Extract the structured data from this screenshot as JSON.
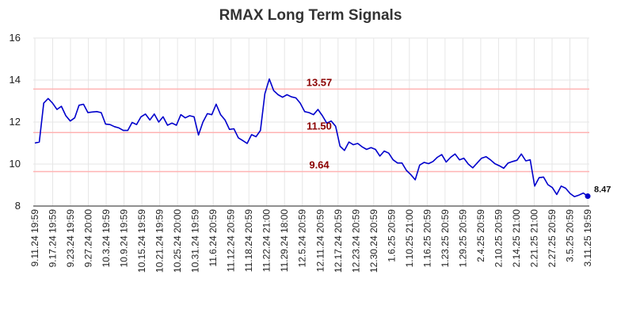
{
  "chart_data": {
    "type": "line",
    "title": "RMAX Long Term Signals",
    "xlabel": "",
    "ylabel": "",
    "ylim": [
      8,
      16
    ],
    "yticks": [
      8,
      10,
      12,
      14,
      16
    ],
    "grid": true,
    "colors": {
      "line": "#0000cc",
      "reference": "#ffb3b3",
      "reference_label": "#8b0000",
      "grid": "#e6e6e6",
      "last_point": "#0000cc"
    },
    "x_tick_labels": [
      "9.11.24 19:59",
      "9.17.24 19:59",
      "9.23.24 19:59",
      "9.27.24 20:00",
      "10.3.24 19:59",
      "10.9.24 19:59",
      "10.15.24 19:59",
      "10.21.24 19:59",
      "10.25.24 20:00",
      "10.31.24 19:59",
      "11.6.24 20:59",
      "11.12.24 20:59",
      "11.18.24 20:59",
      "11.22.24 21:00",
      "11.29.24 18:00",
      "12.5.24 20:59",
      "12.11.24 20:59",
      "12.17.24 20:59",
      "12.23.24 20:59",
      "12.30.24 20:59",
      "1.6.25 20:59",
      "1.10.25 21:00",
      "1.16.25 20:59",
      "1.23.25 20:59",
      "1.29.25 20:59",
      "2.4.25 20:59",
      "2.10.25 20:59",
      "2.14.25 21:00",
      "2.21.25 21:00",
      "2.27.25 20:59",
      "3.5.25 20:59",
      "3.11.25 19:59"
    ],
    "reference_lines": [
      {
        "value": 13.57,
        "label": "13.57"
      },
      {
        "value": 11.5,
        "label": "11.50"
      },
      {
        "value": 9.64,
        "label": "9.64"
      }
    ],
    "last_value_label": "8.47",
    "series": [
      {
        "values": [
          11.0,
          11.05,
          12.9,
          13.12,
          12.9,
          12.6,
          12.75,
          12.3,
          12.05,
          12.2,
          12.8,
          12.85,
          12.45,
          12.48,
          12.5,
          12.45,
          11.9,
          11.88,
          11.78,
          11.72,
          11.6,
          11.6,
          11.98,
          11.88,
          12.25,
          12.38,
          12.1,
          12.38,
          12.0,
          12.25,
          11.85,
          11.95,
          11.85,
          12.35,
          12.2,
          12.3,
          12.25,
          11.38,
          12.0,
          12.4,
          12.35,
          12.85,
          12.35,
          12.1,
          11.65,
          11.68,
          11.25,
          11.12,
          10.98,
          11.4,
          11.3,
          11.6,
          13.35,
          14.05,
          13.5,
          13.3,
          13.18,
          13.3,
          13.2,
          13.15,
          12.9,
          12.5,
          12.45,
          12.35,
          12.6,
          12.3,
          11.95,
          12.05,
          11.8,
          10.85,
          10.65,
          11.05,
          10.92,
          10.98,
          10.82,
          10.7,
          10.78,
          10.7,
          10.38,
          10.62,
          10.52,
          10.2,
          10.05,
          10.05,
          9.7,
          9.5,
          9.25,
          9.95,
          10.08,
          10.02,
          10.12,
          10.32,
          10.45,
          10.1,
          10.32,
          10.48,
          10.2,
          10.28,
          10.0,
          9.82,
          10.05,
          10.28,
          10.35,
          10.2,
          10.02,
          9.92,
          9.8,
          10.05,
          10.12,
          10.18,
          10.48,
          10.15,
          10.2,
          8.95,
          9.35,
          9.38,
          9.02,
          8.88,
          8.55,
          8.95,
          8.85,
          8.6,
          8.45,
          8.52,
          8.62,
          8.47
        ]
      }
    ]
  }
}
